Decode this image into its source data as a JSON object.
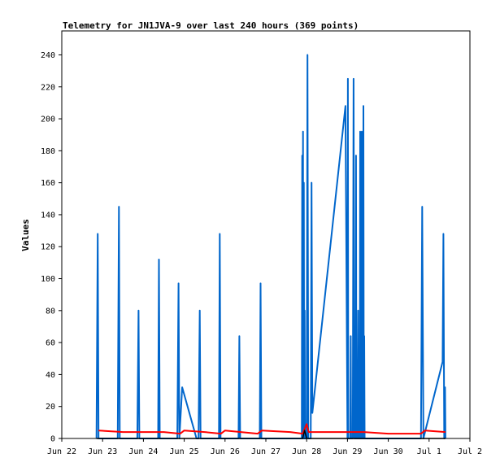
{
  "chart_data": {
    "type": "line",
    "title": "Telemetry for JN1JVA-9 over last 240 hours (369 points)",
    "ylabel": "Values",
    "xlabel": "",
    "x_ticks": [
      "Jun 22",
      "Jun 23",
      "Jun 24",
      "Jun 25",
      "Jun 26",
      "Jun 27",
      "Jun 28",
      "Jun 29",
      "Jun 30",
      "Jul 1",
      "Jul 2"
    ],
    "y_ticks": [
      "0",
      "20",
      "40",
      "60",
      "80",
      "100",
      "120",
      "140",
      "160",
      "180",
      "200",
      "220",
      "240"
    ],
    "xlim_days": [
      0,
      10
    ],
    "ylim": [
      0,
      255
    ],
    "grid": false,
    "legend": "none",
    "series": [
      {
        "color": "#0066cc",
        "points": [
          [
            0.85,
            0
          ],
          [
            0.88,
            128
          ],
          [
            0.9,
            0
          ],
          [
            1.37,
            0
          ],
          [
            1.4,
            145
          ],
          [
            1.42,
            0
          ],
          [
            1.85,
            0
          ],
          [
            1.88,
            80
          ],
          [
            1.9,
            0
          ],
          [
            2.36,
            0
          ],
          [
            2.38,
            112
          ],
          [
            2.4,
            0
          ],
          [
            2.83,
            0
          ],
          [
            2.86,
            97
          ],
          [
            2.88,
            0
          ],
          [
            2.95,
            32
          ],
          [
            3.3,
            0
          ],
          [
            3.35,
            0
          ],
          [
            3.38,
            80
          ],
          [
            3.4,
            0
          ],
          [
            3.85,
            0
          ],
          [
            3.87,
            128
          ],
          [
            3.89,
            0
          ],
          [
            4.33,
            0
          ],
          [
            4.35,
            64
          ],
          [
            4.37,
            0
          ],
          [
            4.85,
            0
          ],
          [
            4.87,
            97
          ],
          [
            4.89,
            0
          ],
          [
            5.88,
            0
          ],
          [
            5.89,
            177
          ],
          [
            5.9,
            0
          ],
          [
            5.91,
            192
          ],
          [
            5.92,
            0
          ],
          [
            5.93,
            160
          ],
          [
            5.94,
            0
          ],
          [
            5.95,
            80
          ],
          [
            5.96,
            0
          ],
          [
            6.0,
            0
          ],
          [
            6.02,
            240
          ],
          [
            6.04,
            0
          ],
          [
            6.1,
            0
          ],
          [
            6.12,
            160
          ],
          [
            6.14,
            16
          ],
          [
            6.95,
            208
          ],
          [
            7.0,
            0
          ],
          [
            7.01,
            225
          ],
          [
            7.02,
            0
          ],
          [
            7.07,
            0
          ],
          [
            7.08,
            64
          ],
          [
            7.09,
            0
          ],
          [
            7.13,
            0
          ],
          [
            7.15,
            225
          ],
          [
            7.17,
            0
          ],
          [
            7.2,
            0
          ],
          [
            7.21,
            177
          ],
          [
            7.22,
            0
          ],
          [
            7.25,
            0
          ],
          [
            7.26,
            80
          ],
          [
            7.27,
            0
          ],
          [
            7.3,
            0
          ],
          [
            7.31,
            192
          ],
          [
            7.32,
            0
          ],
          [
            7.34,
            0
          ],
          [
            7.35,
            192
          ],
          [
            7.36,
            0
          ],
          [
            7.38,
            0
          ],
          [
            7.39,
            208
          ],
          [
            7.4,
            0
          ],
          [
            7.41,
            64
          ],
          [
            7.42,
            0
          ],
          [
            8.8,
            0
          ],
          [
            8.83,
            145
          ],
          [
            8.86,
            0
          ],
          [
            9.33,
            48
          ],
          [
            9.35,
            128
          ],
          [
            9.37,
            0
          ],
          [
            9.39,
            32
          ],
          [
            9.4,
            0
          ]
        ]
      },
      {
        "color": "#ff0000",
        "points": [
          [
            0.9,
            5
          ],
          [
            1.5,
            4
          ],
          [
            2.5,
            4
          ],
          [
            2.9,
            3
          ],
          [
            3.0,
            5
          ],
          [
            3.5,
            4
          ],
          [
            3.9,
            3
          ],
          [
            4.0,
            5
          ],
          [
            4.8,
            3
          ],
          [
            4.9,
            5
          ],
          [
            5.6,
            4
          ],
          [
            5.9,
            3
          ],
          [
            6.0,
            9
          ],
          [
            6.05,
            4
          ],
          [
            7.0,
            4
          ],
          [
            7.4,
            4
          ],
          [
            8.0,
            3
          ],
          [
            8.8,
            3
          ],
          [
            8.9,
            5
          ],
          [
            9.4,
            4
          ]
        ]
      },
      {
        "color": "#000000",
        "points": [
          [
            0.85,
            0
          ],
          [
            5.9,
            0
          ],
          [
            5.95,
            5
          ],
          [
            6.0,
            0
          ],
          [
            9.4,
            0
          ]
        ]
      }
    ]
  }
}
